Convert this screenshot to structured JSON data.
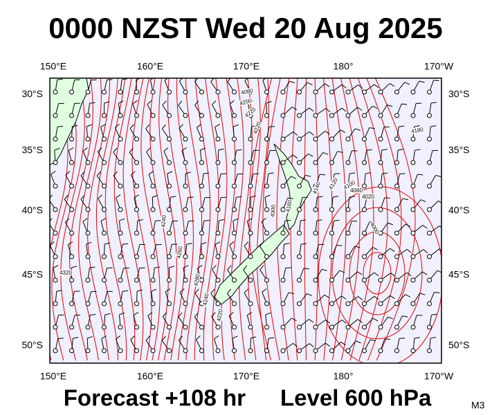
{
  "header": {
    "title": "0000 NZST Wed 20 Aug 2025"
  },
  "map": {
    "top_labels": [
      "150°E",
      "160°E",
      "170°E",
      "180°",
      "170°W"
    ],
    "bottom_labels": [
      "150°E",
      "160°E",
      "170°E",
      "180°",
      "170°W"
    ],
    "left_labels": [
      "30°S",
      "35°S",
      "40°S",
      "45°S",
      "50°S"
    ],
    "right_labels": [
      "30°S",
      "35°S",
      "40°S",
      "45°S",
      "50°S"
    ],
    "contour_labels": [
      "4080",
      "4200",
      "4220",
      "4220",
      "4180",
      "4160",
      "4140",
      "4120",
      "4100",
      "4060",
      "4020",
      "4000",
      "4320",
      "4300",
      "4280",
      "4260",
      "4240",
      "4240",
      "4220"
    ]
  },
  "footer": {
    "forecast": "Forecast +108 hr",
    "level": "Level 600 hPa",
    "code": "M3"
  }
}
